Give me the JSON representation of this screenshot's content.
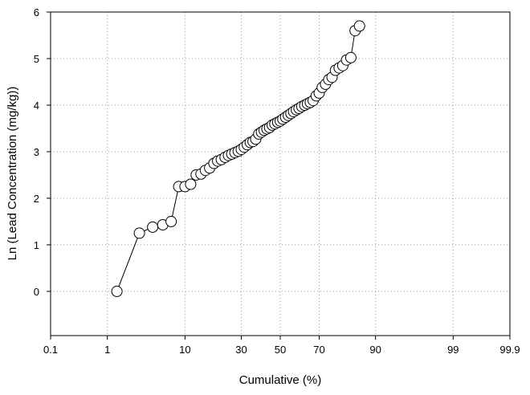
{
  "chart_data": {
    "type": "scatter",
    "xlabel": "Cumulative (%)",
    "ylabel": "Ln (Lead Concentration (mg/kg))",
    "x_scale": "probability",
    "x_ticks": [
      "0.1",
      "1",
      "10",
      "30",
      "50",
      "70",
      "90",
      "99",
      "99.9"
    ],
    "y_ticks": [
      "0",
      "1",
      "2",
      "3",
      "4",
      "5",
      "6"
    ],
    "xlim": [
      0.1,
      99.9
    ],
    "ylim": [
      -0.95,
      6
    ],
    "grid": true,
    "legend": "none",
    "marker": "open-circle",
    "connected": true,
    "series": [
      {
        "points": [
          [
            1.4,
            0.0
          ],
          [
            2.9,
            1.25
          ],
          [
            4.3,
            1.38
          ],
          [
            5.7,
            1.43
          ],
          [
            7.1,
            1.5
          ],
          [
            8.6,
            2.25
          ],
          [
            10.0,
            2.25
          ],
          [
            11.4,
            2.3
          ],
          [
            12.9,
            2.5
          ],
          [
            14.3,
            2.52
          ],
          [
            15.7,
            2.6
          ],
          [
            17.1,
            2.65
          ],
          [
            18.6,
            2.75
          ],
          [
            20.0,
            2.8
          ],
          [
            21.4,
            2.83
          ],
          [
            22.9,
            2.88
          ],
          [
            24.3,
            2.92
          ],
          [
            25.7,
            2.95
          ],
          [
            27.1,
            2.98
          ],
          [
            28.6,
            3.01
          ],
          [
            30.0,
            3.05
          ],
          [
            31.4,
            3.1
          ],
          [
            32.9,
            3.15
          ],
          [
            34.3,
            3.2
          ],
          [
            35.7,
            3.22
          ],
          [
            37.1,
            3.27
          ],
          [
            38.6,
            3.38
          ],
          [
            40.0,
            3.42
          ],
          [
            41.4,
            3.46
          ],
          [
            42.9,
            3.49
          ],
          [
            44.3,
            3.52
          ],
          [
            45.7,
            3.57
          ],
          [
            47.1,
            3.6
          ],
          [
            48.6,
            3.63
          ],
          [
            50.0,
            3.66
          ],
          [
            51.4,
            3.7
          ],
          [
            52.9,
            3.74
          ],
          [
            54.3,
            3.78
          ],
          [
            55.7,
            3.82
          ],
          [
            57.1,
            3.86
          ],
          [
            58.6,
            3.9
          ],
          [
            60.0,
            3.93
          ],
          [
            61.4,
            3.97
          ],
          [
            62.9,
            4.0
          ],
          [
            64.3,
            4.03
          ],
          [
            65.7,
            4.06
          ],
          [
            67.1,
            4.1
          ],
          [
            68.6,
            4.2
          ],
          [
            70.0,
            4.26
          ],
          [
            71.4,
            4.38
          ],
          [
            72.9,
            4.45
          ],
          [
            74.3,
            4.55
          ],
          [
            75.7,
            4.6
          ],
          [
            77.1,
            4.75
          ],
          [
            78.6,
            4.8
          ],
          [
            80.0,
            4.85
          ],
          [
            81.4,
            4.97
          ],
          [
            82.9,
            5.02
          ],
          [
            84.3,
            5.6
          ],
          [
            85.7,
            5.7
          ]
        ]
      }
    ]
  }
}
